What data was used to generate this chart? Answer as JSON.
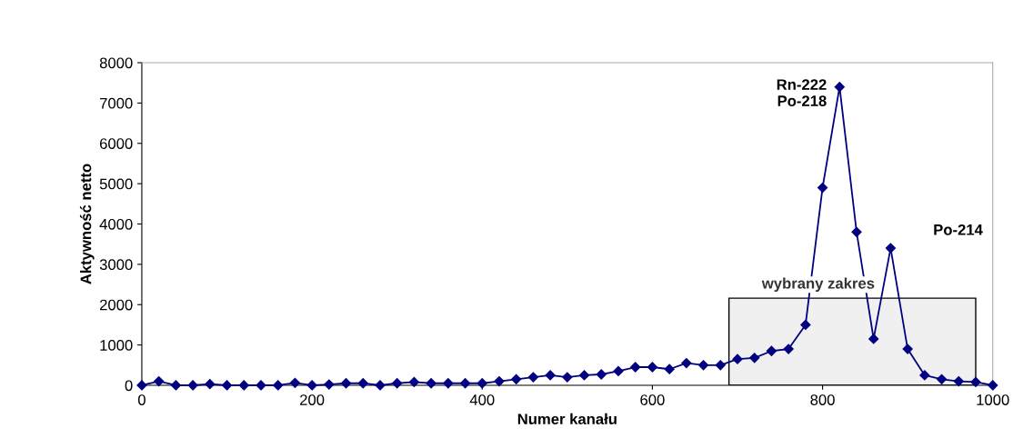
{
  "chart_data": {
    "type": "line",
    "xlabel": "Numer kanału",
    "ylabel": "Aktywność netto",
    "x": [
      0,
      20,
      40,
      60,
      80,
      100,
      120,
      140,
      160,
      180,
      200,
      220,
      240,
      260,
      280,
      300,
      320,
      340,
      360,
      380,
      400,
      420,
      440,
      460,
      480,
      500,
      520,
      540,
      560,
      580,
      600,
      620,
      640,
      660,
      680,
      700,
      720,
      740,
      760,
      780,
      800,
      820,
      840,
      860,
      880,
      900,
      920,
      940,
      960,
      980,
      1000
    ],
    "series": [
      {
        "color": "#000080",
        "values": [
          0,
          100,
          0,
          0,
          30,
          0,
          0,
          0,
          0,
          60,
          0,
          20,
          50,
          50,
          0,
          50,
          80,
          50,
          50,
          50,
          50,
          100,
          150,
          200,
          250,
          200,
          250,
          270,
          350,
          450,
          450,
          400,
          550,
          500,
          500,
          650,
          680,
          850,
          900,
          1500,
          4900,
          7400,
          3800,
          1150,
          3400,
          900,
          250,
          150,
          100,
          80,
          0
        ]
      }
    ],
    "xlim": [
      0,
      1000
    ],
    "xticks": [
      0,
      200,
      400,
      600,
      800,
      1000
    ],
    "ylim": [
      0,
      8000
    ],
    "yticks": [
      0,
      1000,
      2000,
      3000,
      4000,
      5000,
      6000,
      7000,
      8000
    ],
    "grid": false,
    "legend": false,
    "marker": "diamond",
    "line_style": "solid",
    "bands": [
      {
        "axis": "x",
        "from": 690,
        "to": 980,
        "label": "wybrany zakres",
        "color": "#000000"
      }
    ],
    "annotations": [
      "Rn-222\nPo-218",
      "Po-214"
    ]
  }
}
